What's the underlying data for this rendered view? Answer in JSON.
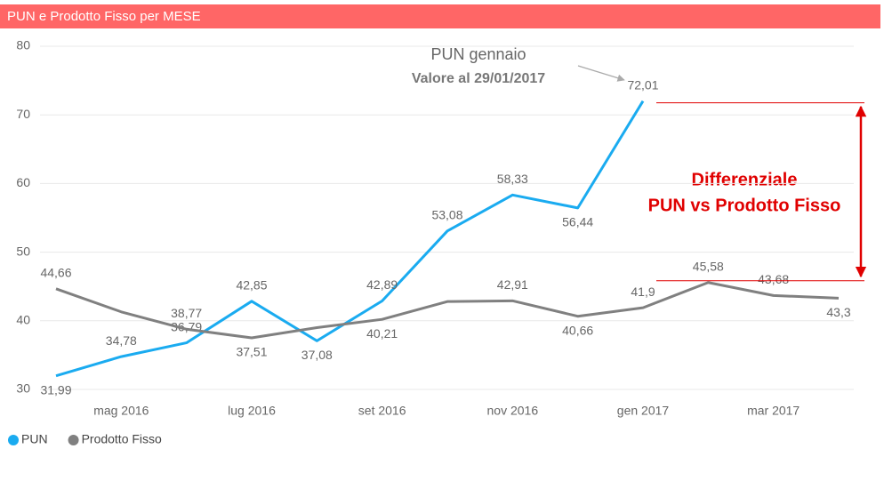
{
  "chart_data": {
    "type": "line",
    "title": "PUN e Prodotto Fisso per MESE",
    "categories": [
      null,
      "mag 2016",
      null,
      "lug 2016",
      null,
      "set 2016",
      null,
      "nov 2016",
      null,
      "gen 2017",
      null,
      "mar 2017",
      null
    ],
    "series": [
      {
        "name": "PUN",
        "color": "#1aabf0",
        "values": [
          31.99,
          34.78,
          36.79,
          42.85,
          37.08,
          42.89,
          53.08,
          58.33,
          56.44,
          72.01,
          null,
          null,
          null
        ],
        "value_labels": [
          "31,99",
          "34,78",
          "36,79",
          "42,85",
          "37,08",
          "42,89",
          "53,08",
          "58,33",
          "56,44",
          "72,01",
          null,
          null,
          null
        ]
      },
      {
        "name": "Prodotto Fisso",
        "color": "#808080",
        "values": [
          44.66,
          41.3,
          38.77,
          37.51,
          39.0,
          40.21,
          42.8,
          42.91,
          40.66,
          41.9,
          45.58,
          43.68,
          43.3
        ],
        "value_labels": [
          "44,66",
          null,
          "38,77",
          "37,51",
          null,
          "40,21",
          null,
          "42,91",
          "40,66",
          "41,9",
          "45,58",
          "43,68",
          "43,3"
        ]
      }
    ],
    "ylim": [
      30,
      80
    ],
    "yticks": [
      30,
      40,
      50,
      60,
      70,
      80
    ],
    "grid": true,
    "legend": "bottom-left",
    "annotations": [
      "PUN gennaio",
      "Valore al 29/01/2017",
      "Differenziale",
      "PUN vs Prodotto Fisso"
    ]
  }
}
